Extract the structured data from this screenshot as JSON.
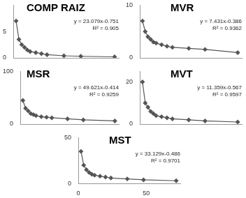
{
  "chart_data": [
    {
      "type": "line",
      "title": "COMP RAIZ",
      "annotations": [
        "y = 23.079x-0.751",
        "R² = 0.905"
      ],
      "x": [
        2,
        4,
        6,
        8,
        10,
        12,
        16,
        20,
        24,
        36,
        48,
        72
      ],
      "values": [
        7,
        3.5,
        2.5,
        2,
        1.5,
        1.2,
        1,
        0.8,
        0.6,
        0.4,
        0.3,
        0.2
      ],
      "color": "#555555",
      "marker": "diamond",
      "line_style": "solid",
      "xlim": [
        0,
        75
      ],
      "ylim": [
        0,
        10
      ],
      "yticks": [
        0,
        5
      ],
      "grid": false,
      "tick_labels": "y"
    },
    {
      "type": "line",
      "title": "MVR",
      "annotations": [
        "y = 7.431x-0.386",
        "R² = 0.9362"
      ],
      "x": [
        2,
        4,
        6,
        8,
        10,
        12,
        16,
        20,
        24,
        36,
        48,
        72
      ],
      "values": [
        7,
        5,
        4,
        3.5,
        3,
        2.8,
        2.5,
        2.2,
        2,
        1.8,
        1.6,
        1
      ],
      "color": "#555555",
      "marker": "diamond",
      "line_style": "solid",
      "xlim": [
        0,
        75
      ],
      "ylim": [
        0,
        10
      ],
      "yticks": [
        0,
        10
      ],
      "grid": false,
      "tick_labels": "y"
    },
    {
      "type": "line",
      "title": "MSR",
      "annotations": [
        "y = 49.621x-0.414",
        "R² = 0.9259"
      ],
      "x": [
        2,
        4,
        6,
        8,
        10,
        12,
        16,
        20,
        24,
        36,
        48,
        72
      ],
      "values": [
        45,
        30,
        25,
        20,
        18,
        16,
        14,
        13,
        12,
        10,
        8,
        6
      ],
      "color": "#555555",
      "marker": "diamond",
      "line_style": "solid",
      "xlim": [
        0,
        75
      ],
      "ylim": [
        0,
        100
      ],
      "yticks": [
        0,
        100
      ],
      "grid": false,
      "tick_labels": "y"
    },
    {
      "type": "line",
      "title": "MVT",
      "annotations": [
        "y = 11.359x-0.567",
        "R² = 0.9597"
      ],
      "x": [
        2,
        4,
        6,
        8,
        10,
        12,
        16,
        20,
        24,
        36,
        48,
        72
      ],
      "values": [
        20,
        10,
        8,
        6,
        5,
        4,
        3.5,
        3,
        2.5,
        2,
        1.5,
        1
      ],
      "color": "#555555",
      "marker": "diamond",
      "line_style": "solid",
      "xlim": [
        0,
        75
      ],
      "ylim": [
        0,
        25
      ],
      "yticks": [
        0,
        20
      ],
      "grid": false,
      "tick_labels": "y"
    },
    {
      "type": "line",
      "title": "MST",
      "annotations": [
        "y = 33.129x-0.486",
        "R² = 0.9701"
      ],
      "x": [
        2,
        4,
        6,
        8,
        10,
        12,
        16,
        20,
        24,
        36,
        48,
        72
      ],
      "values": [
        35,
        20,
        15,
        12,
        10,
        9,
        8,
        7,
        6,
        5,
        4,
        3
      ],
      "color": "#555555",
      "marker": "diamond",
      "line_style": "solid",
      "xlim": [
        0,
        75
      ],
      "xticks": [
        0,
        50
      ],
      "ylim": [
        0,
        50
      ],
      "yticks": [
        0,
        50
      ],
      "grid": false
    }
  ]
}
